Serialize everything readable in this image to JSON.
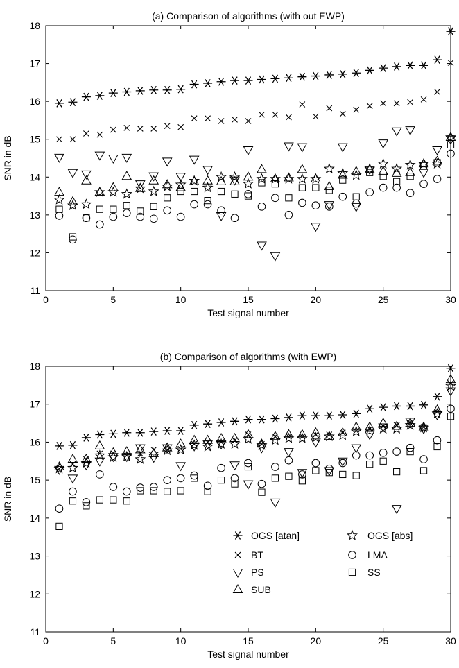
{
  "chart_data": [
    {
      "type": "scatter",
      "title": "(a) Comparison of algorithms (with out EWP)",
      "xlabel": "Test signal number",
      "ylabel": "SNR in dB",
      "xlim": [
        0,
        30
      ],
      "ylim": [
        11,
        18
      ],
      "xticks": [
        "0",
        "5",
        "10",
        "15",
        "20",
        "25",
        "30"
      ],
      "yticks": [
        "11",
        "12",
        "13",
        "14",
        "15",
        "16",
        "17",
        "18"
      ],
      "grid": false,
      "series": [
        {
          "name": "OGS [atan]",
          "marker": "asterisk",
          "values": [
            15.95,
            15.98,
            16.12,
            16.15,
            16.22,
            16.25,
            16.28,
            16.3,
            16.3,
            16.32,
            16.45,
            16.48,
            16.52,
            16.55,
            16.55,
            16.58,
            16.6,
            16.62,
            16.65,
            16.67,
            16.7,
            16.72,
            16.75,
            16.82,
            16.88,
            16.92,
            16.95,
            16.95,
            17.1,
            17.85
          ]
        },
        {
          "name": "BT",
          "marker": "x",
          "values": [
            15.0,
            15.0,
            15.15,
            15.12,
            15.25,
            15.3,
            15.28,
            15.28,
            15.35,
            15.32,
            15.55,
            15.55,
            15.48,
            15.52,
            15.48,
            15.65,
            15.65,
            15.58,
            15.92,
            15.6,
            15.82,
            15.67,
            15.78,
            15.88,
            15.95,
            15.95,
            15.98,
            16.05,
            16.25,
            17.02
          ]
        },
        {
          "name": "PS",
          "marker": "triangle-down",
          "values": [
            14.52,
            14.12,
            14.08,
            14.58,
            14.5,
            14.52,
            13.82,
            14.03,
            14.42,
            14.02,
            14.47,
            14.2,
            12.98,
            13.92,
            14.72,
            12.2,
            11.92,
            14.82,
            14.8,
            12.7,
            13.27,
            14.8,
            13.22,
            14.2,
            14.9,
            15.22,
            15.25,
            14.12,
            14.72,
            15.0
          ]
        },
        {
          "name": "SUB",
          "marker": "triangle-up",
          "values": [
            13.6,
            13.35,
            13.9,
            13.6,
            13.72,
            14.02,
            13.7,
            13.9,
            13.8,
            13.72,
            13.88,
            13.9,
            13.88,
            13.88,
            14.0,
            14.2,
            13.95,
            13.98,
            14.2,
            13.95,
            13.75,
            14.05,
            14.15,
            14.2,
            14.15,
            14.1,
            14.12,
            14.35,
            14.42,
            15.05
          ]
        },
        {
          "name": "OGS [abs]",
          "marker": "star",
          "values": [
            13.4,
            13.25,
            13.28,
            13.6,
            13.6,
            13.55,
            13.7,
            13.62,
            13.75,
            13.8,
            13.9,
            13.72,
            14.0,
            14.0,
            13.82,
            13.95,
            13.95,
            13.95,
            13.95,
            13.95,
            14.22,
            14.1,
            14.05,
            14.22,
            14.35,
            14.22,
            14.32,
            14.35,
            14.35,
            15.05
          ]
        },
        {
          "name": "LMA",
          "marker": "circle",
          "values": [
            12.98,
            12.35,
            12.92,
            12.75,
            12.95,
            13.05,
            12.95,
            12.9,
            13.12,
            12.95,
            13.28,
            13.28,
            13.12,
            12.92,
            13.55,
            13.22,
            13.45,
            13.0,
            13.32,
            13.25,
            13.22,
            13.48,
            13.3,
            13.6,
            13.72,
            13.72,
            13.58,
            13.82,
            13.95,
            14.62
          ]
        },
        {
          "name": "SS",
          "marker": "square",
          "values": [
            13.15,
            12.42,
            12.92,
            13.15,
            13.15,
            13.25,
            13.1,
            13.22,
            13.45,
            13.62,
            13.62,
            13.38,
            13.62,
            13.55,
            13.5,
            13.85,
            13.82,
            13.45,
            13.72,
            13.72,
            13.65,
            13.92,
            13.48,
            14.12,
            14.02,
            13.88,
            14.02,
            14.3,
            14.38,
            14.85
          ]
        }
      ]
    },
    {
      "type": "scatter",
      "title": "(b) Comparison of algorithms (with EWP)",
      "xlabel": "Test signal number",
      "ylabel": "SNR in dB",
      "xlim": [
        0,
        30
      ],
      "ylim": [
        11,
        18
      ],
      "xticks": [
        "0",
        "5",
        "10",
        "15",
        "20",
        "25",
        "30"
      ],
      "yticks": [
        "11",
        "12",
        "13",
        "14",
        "15",
        "16",
        "17",
        "18"
      ],
      "grid": false,
      "legend_position": "lower-right",
      "series": [
        {
          "name": "OGS [atan]",
          "marker": "asterisk",
          "values": [
            15.9,
            15.92,
            16.12,
            16.2,
            16.22,
            16.25,
            16.25,
            16.28,
            16.3,
            16.3,
            16.45,
            16.48,
            16.52,
            16.55,
            16.6,
            16.6,
            16.62,
            16.65,
            16.7,
            16.7,
            16.7,
            16.72,
            16.75,
            16.88,
            16.92,
            16.95,
            16.95,
            16.98,
            17.2,
            17.95
          ]
        },
        {
          "name": "BT",
          "marker": "x",
          "values": [
            15.3,
            15.42,
            15.55,
            15.7,
            15.7,
            15.65,
            15.7,
            15.8,
            15.8,
            15.82,
            15.95,
            16.0,
            16.0,
            16.05,
            16.2,
            15.95,
            16.15,
            16.15,
            16.15,
            16.2,
            16.2,
            16.25,
            16.3,
            16.35,
            16.42,
            16.45,
            16.5,
            16.4,
            16.8,
            17.55
          ]
        },
        {
          "name": "PS",
          "marker": "triangle-down",
          "values": [
            15.28,
            15.05,
            15.4,
            15.5,
            15.62,
            15.62,
            15.85,
            15.6,
            15.85,
            15.38,
            15.9,
            15.95,
            15.95,
            15.4,
            14.9,
            15.85,
            14.42,
            15.75,
            15.2,
            16.0,
            15.25,
            15.5,
            15.85,
            16.2,
            16.4,
            14.25,
            16.55,
            16.35,
            16.72,
            17.35
          ]
        },
        {
          "name": "SUB",
          "marker": "triangle-up",
          "values": [
            15.35,
            15.55,
            15.55,
            15.9,
            15.72,
            15.75,
            15.8,
            15.7,
            15.85,
            15.95,
            16.05,
            16.05,
            16.1,
            16.1,
            16.2,
            15.95,
            16.15,
            16.2,
            16.2,
            16.25,
            16.15,
            16.25,
            16.4,
            16.4,
            16.5,
            16.42,
            16.5,
            16.4,
            16.85,
            17.65
          ]
        },
        {
          "name": "OGS [abs]",
          "marker": "star",
          "values": [
            15.3,
            15.32,
            15.45,
            15.65,
            15.6,
            15.62,
            15.55,
            15.7,
            15.78,
            15.8,
            15.92,
            15.88,
            15.95,
            15.95,
            16.08,
            15.92,
            16.05,
            16.1,
            16.1,
            16.12,
            16.15,
            16.18,
            16.28,
            16.3,
            16.35,
            16.35,
            16.45,
            16.38,
            16.75,
            17.48
          ]
        },
        {
          "name": "LMA",
          "marker": "circle",
          "values": [
            14.25,
            14.7,
            14.42,
            15.15,
            14.82,
            14.7,
            14.8,
            14.82,
            15.0,
            15.05,
            15.12,
            14.85,
            15.32,
            15.05,
            15.45,
            14.9,
            15.35,
            15.52,
            15.15,
            15.45,
            15.3,
            15.45,
            15.65,
            15.65,
            15.72,
            15.75,
            15.85,
            15.55,
            16.05,
            16.88
          ]
        },
        {
          "name": "SS",
          "marker": "square",
          "values": [
            13.78,
            14.45,
            14.32,
            14.48,
            14.48,
            14.45,
            14.72,
            14.72,
            14.7,
            14.72,
            15.05,
            14.7,
            15.0,
            14.9,
            15.35,
            14.68,
            15.05,
            15.1,
            14.98,
            15.25,
            15.2,
            15.15,
            15.12,
            15.42,
            15.5,
            15.22,
            15.75,
            15.25,
            15.88,
            16.68
          ]
        }
      ]
    }
  ]
}
